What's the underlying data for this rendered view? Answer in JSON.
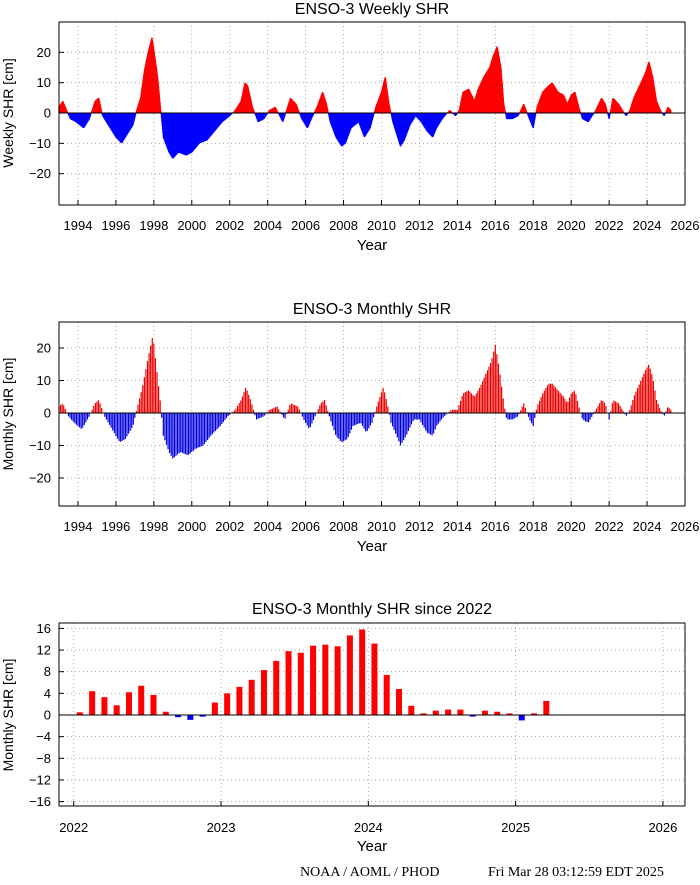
{
  "footer": {
    "source": "NOAA / AOML / PHOD",
    "timestamp": "Fri Mar 28 03:12:59 EDT 2025"
  },
  "chart_data": [
    {
      "type": "bar",
      "title": "ENSO-3 Weekly SHR",
      "xlabel": "Year",
      "ylabel": "Weekly SHR [cm]",
      "xlim": [
        1993,
        2026
      ],
      "ylim": [
        -30,
        30
      ],
      "x_ticks": [
        "1994",
        "1996",
        "1998",
        "2000",
        "2002",
        "2004",
        "2006",
        "2008",
        "2010",
        "2012",
        "2014",
        "2016",
        "2018",
        "2020",
        "2022",
        "2024",
        "2026"
      ],
      "y_ticks": [
        "−20",
        "−10",
        "0",
        "10",
        "20"
      ],
      "grid": true,
      "colors": {
        "positive": "#ff0000",
        "negative": "#0000ff"
      },
      "series_keypoints": [
        [
          1993.0,
          2
        ],
        [
          1993.2,
          4
        ],
        [
          1993.4,
          1
        ],
        [
          1993.6,
          -2
        ],
        [
          1993.9,
          -3
        ],
        [
          1994.3,
          -5
        ],
        [
          1994.6,
          -2
        ],
        [
          1994.9,
          4
        ],
        [
          1995.1,
          5
        ],
        [
          1995.3,
          -1
        ],
        [
          1995.6,
          -4
        ],
        [
          1996.0,
          -8
        ],
        [
          1996.3,
          -10
        ],
        [
          1996.6,
          -7
        ],
        [
          1996.9,
          -4
        ],
        [
          1997.1,
          1
        ],
        [
          1997.3,
          5
        ],
        [
          1997.5,
          14
        ],
        [
          1997.7,
          20
        ],
        [
          1997.9,
          25
        ],
        [
          1998.0,
          21
        ],
        [
          1998.2,
          12
        ],
        [
          1998.35,
          2
        ],
        [
          1998.5,
          -8
        ],
        [
          1998.8,
          -13
        ],
        [
          1999.0,
          -15
        ],
        [
          1999.3,
          -13
        ],
        [
          1999.7,
          -14
        ],
        [
          2000.0,
          -13
        ],
        [
          2000.4,
          -10
        ],
        [
          2000.8,
          -9
        ],
        [
          2001.2,
          -6
        ],
        [
          2001.6,
          -3
        ],
        [
          2002.0,
          -1
        ],
        [
          2002.3,
          1
        ],
        [
          2002.6,
          4
        ],
        [
          2002.8,
          10
        ],
        [
          2002.95,
          9
        ],
        [
          2003.2,
          2
        ],
        [
          2003.5,
          -3
        ],
        [
          2003.8,
          -2
        ],
        [
          2004.1,
          1
        ],
        [
          2004.4,
          2
        ],
        [
          2004.8,
          -3
        ],
        [
          2005.2,
          5
        ],
        [
          2005.5,
          3
        ],
        [
          2005.8,
          -2
        ],
        [
          2006.1,
          -5
        ],
        [
          2006.3,
          -2
        ],
        [
          2006.6,
          2
        ],
        [
          2006.9,
          7
        ],
        [
          2007.1,
          3
        ],
        [
          2007.3,
          -3
        ],
        [
          2007.6,
          -8
        ],
        [
          2007.9,
          -11
        ],
        [
          2008.1,
          -10
        ],
        [
          2008.4,
          -5
        ],
        [
          2008.8,
          -3
        ],
        [
          2009.1,
          -8
        ],
        [
          2009.4,
          -5
        ],
        [
          2009.7,
          2
        ],
        [
          2010.0,
          7
        ],
        [
          2010.2,
          12
        ],
        [
          2010.4,
          3
        ],
        [
          2010.6,
          -3
        ],
        [
          2010.8,
          -7
        ],
        [
          2011.0,
          -11
        ],
        [
          2011.2,
          -9
        ],
        [
          2011.5,
          -4
        ],
        [
          2011.8,
          -1
        ],
        [
          2012.1,
          -3
        ],
        [
          2012.4,
          -6
        ],
        [
          2012.7,
          -8
        ],
        [
          2012.9,
          -5
        ],
        [
          2013.2,
          -2
        ],
        [
          2013.6,
          1
        ],
        [
          2013.9,
          -1
        ],
        [
          2014.1,
          1
        ],
        [
          2014.3,
          7
        ],
        [
          2014.6,
          8
        ],
        [
          2014.9,
          4
        ],
        [
          2015.1,
          8
        ],
        [
          2015.4,
          12
        ],
        [
          2015.7,
          15
        ],
        [
          2015.9,
          19
        ],
        [
          2016.1,
          22
        ],
        [
          2016.3,
          15
        ],
        [
          2016.45,
          3
        ],
        [
          2016.6,
          -2
        ],
        [
          2016.9,
          -2
        ],
        [
          2017.2,
          -1
        ],
        [
          2017.5,
          3
        ],
        [
          2017.8,
          -2
        ],
        [
          2018.0,
          -5
        ],
        [
          2018.2,
          2
        ],
        [
          2018.5,
          7
        ],
        [
          2018.8,
          9
        ],
        [
          2019.0,
          10
        ],
        [
          2019.3,
          7
        ],
        [
          2019.6,
          6
        ],
        [
          2019.8,
          3
        ],
        [
          2020.0,
          6
        ],
        [
          2020.2,
          7
        ],
        [
          2020.4,
          2
        ],
        [
          2020.6,
          -2
        ],
        [
          2020.9,
          -3
        ],
        [
          2021.1,
          -1
        ],
        [
          2021.3,
          1
        ],
        [
          2021.6,
          5
        ],
        [
          2021.8,
          3
        ],
        [
          2022.0,
          -2
        ],
        [
          2022.2,
          5
        ],
        [
          2022.5,
          3
        ],
        [
          2022.7,
          1
        ],
        [
          2022.9,
          -1
        ],
        [
          2023.1,
          1
        ],
        [
          2023.3,
          5
        ],
        [
          2023.6,
          9
        ],
        [
          2023.9,
          13
        ],
        [
          2024.1,
          17
        ],
        [
          2024.3,
          12
        ],
        [
          2024.5,
          4
        ],
        [
          2024.7,
          1
        ],
        [
          2024.9,
          -1
        ],
        [
          2025.1,
          2
        ],
        [
          2025.25,
          1
        ]
      ]
    },
    {
      "type": "bar",
      "title": "ENSO-3 Monthly SHR",
      "xlabel": "Year",
      "ylabel": "Monthly SHR [cm]",
      "xlim": [
        1993,
        2026
      ],
      "ylim": [
        -30,
        28
      ],
      "x_ticks": [
        "1994",
        "1996",
        "1998",
        "2000",
        "2002",
        "2004",
        "2006",
        "2008",
        "2010",
        "2012",
        "2014",
        "2016",
        "2018",
        "2020",
        "2022",
        "2024",
        "2026"
      ],
      "y_ticks": [
        "−20",
        "−10",
        "0",
        "10",
        "20"
      ],
      "grid": true,
      "colors": {
        "positive": "#ff0000",
        "negative": "#0000ff"
      },
      "series_keypoints": [
        [
          1993.0,
          2
        ],
        [
          1993.2,
          3
        ],
        [
          1993.5,
          -1
        ],
        [
          1993.8,
          -3
        ],
        [
          1994.2,
          -5
        ],
        [
          1994.6,
          -1
        ],
        [
          1994.9,
          3
        ],
        [
          1995.1,
          4
        ],
        [
          1995.4,
          -1
        ],
        [
          1995.8,
          -5
        ],
        [
          1996.2,
          -9
        ],
        [
          1996.5,
          -8
        ],
        [
          1996.9,
          -4
        ],
        [
          1997.1,
          1
        ],
        [
          1997.4,
          8
        ],
        [
          1997.7,
          17
        ],
        [
          1997.95,
          24
        ],
        [
          1998.1,
          16
        ],
        [
          1998.35,
          3
        ],
        [
          1998.5,
          -7
        ],
        [
          1998.8,
          -12
        ],
        [
          1999.0,
          -14
        ],
        [
          1999.4,
          -12
        ],
        [
          1999.8,
          -13
        ],
        [
          2000.2,
          -11
        ],
        [
          2000.6,
          -10
        ],
        [
          2001.0,
          -7
        ],
        [
          2001.5,
          -4
        ],
        [
          2001.9,
          -1
        ],
        [
          2002.3,
          1
        ],
        [
          2002.6,
          4
        ],
        [
          2002.85,
          8
        ],
        [
          2003.1,
          4
        ],
        [
          2003.4,
          -2
        ],
        [
          2003.8,
          -1
        ],
        [
          2004.1,
          1
        ],
        [
          2004.5,
          2
        ],
        [
          2004.9,
          -2
        ],
        [
          2005.2,
          3
        ],
        [
          2005.6,
          2
        ],
        [
          2005.9,
          -2
        ],
        [
          2006.2,
          -5
        ],
        [
          2006.5,
          -1
        ],
        [
          2006.8,
          3
        ],
        [
          2007.0,
          4
        ],
        [
          2007.3,
          -2
        ],
        [
          2007.6,
          -7
        ],
        [
          2007.9,
          -9
        ],
        [
          2008.2,
          -8
        ],
        [
          2008.5,
          -4
        ],
        [
          2008.9,
          -3
        ],
        [
          2009.2,
          -6
        ],
        [
          2009.5,
          -3
        ],
        [
          2009.8,
          3
        ],
        [
          2010.1,
          8
        ],
        [
          2010.3,
          3
        ],
        [
          2010.5,
          -3
        ],
        [
          2010.8,
          -7
        ],
        [
          2011.0,
          -10
        ],
        [
          2011.3,
          -7
        ],
        [
          2011.7,
          -2
        ],
        [
          2012.0,
          -2
        ],
        [
          2012.4,
          -6
        ],
        [
          2012.7,
          -7
        ],
        [
          2012.9,
          -4
        ],
        [
          2013.3,
          -1
        ],
        [
          2013.7,
          1
        ],
        [
          2014.0,
          1
        ],
        [
          2014.3,
          6
        ],
        [
          2014.6,
          7
        ],
        [
          2014.9,
          5
        ],
        [
          2015.2,
          8
        ],
        [
          2015.5,
          12
        ],
        [
          2015.8,
          16
        ],
        [
          2016.0,
          21
        ],
        [
          2016.2,
          14
        ],
        [
          2016.45,
          3
        ],
        [
          2016.6,
          -2
        ],
        [
          2016.9,
          -2
        ],
        [
          2017.2,
          -1
        ],
        [
          2017.5,
          3
        ],
        [
          2017.8,
          -2
        ],
        [
          2018.0,
          -4
        ],
        [
          2018.2,
          2
        ],
        [
          2018.5,
          6
        ],
        [
          2018.8,
          9
        ],
        [
          2019.0,
          9
        ],
        [
          2019.3,
          7
        ],
        [
          2019.6,
          5
        ],
        [
          2019.8,
          3
        ],
        [
          2020.0,
          6
        ],
        [
          2020.2,
          7
        ],
        [
          2020.4,
          2
        ],
        [
          2020.6,
          -2
        ],
        [
          2020.9,
          -3
        ],
        [
          2021.1,
          -1
        ],
        [
          2021.3,
          1
        ],
        [
          2021.6,
          4
        ],
        [
          2021.8,
          3
        ],
        [
          2022.0,
          -2
        ],
        [
          2022.2,
          4
        ],
        [
          2022.5,
          3
        ],
        [
          2022.7,
          1
        ],
        [
          2022.9,
          -1
        ],
        [
          2023.1,
          1
        ],
        [
          2023.3,
          5
        ],
        [
          2023.6,
          9
        ],
        [
          2023.9,
          13
        ],
        [
          2024.1,
          15
        ],
        [
          2024.3,
          11
        ],
        [
          2024.5,
          4
        ],
        [
          2024.7,
          1
        ],
        [
          2024.9,
          -1
        ],
        [
          2025.1,
          2
        ],
        [
          2025.25,
          1
        ]
      ]
    },
    {
      "type": "bar",
      "title": "ENSO-3 Monthly SHR since 2022",
      "xlabel": "Year",
      "ylabel": "Monthly SHR [cm]",
      "xlim": [
        2021.9,
        2026.15
      ],
      "ylim": [
        -17,
        17
      ],
      "x_ticks": [
        "2022",
        "2023",
        "2024",
        "2025",
        "2026"
      ],
      "y_ticks": [
        "16",
        "12",
        "8",
        "4",
        "0",
        "−4",
        "−8",
        "−12",
        "−16"
      ],
      "grid": true,
      "colors": {
        "positive": "#ff0000",
        "negative": "#0000ff"
      },
      "months": [
        "2022-01",
        "2022-02",
        "2022-03",
        "2022-04",
        "2022-05",
        "2022-06",
        "2022-07",
        "2022-08",
        "2022-09",
        "2022-10",
        "2022-11",
        "2022-12",
        "2023-01",
        "2023-02",
        "2023-03",
        "2023-04",
        "2023-05",
        "2023-06",
        "2023-07",
        "2023-08",
        "2023-09",
        "2023-10",
        "2023-11",
        "2023-12",
        "2024-01",
        "2024-02",
        "2024-03",
        "2024-04",
        "2024-05",
        "2024-06",
        "2024-07",
        "2024-08",
        "2024-09",
        "2024-10",
        "2024-11",
        "2024-12",
        "2025-01",
        "2025-02",
        "2025-03"
      ],
      "values": [
        0.5,
        4.4,
        3.3,
        1.8,
        4.2,
        5.4,
        3.7,
        0.6,
        -0.4,
        -0.9,
        -0.3,
        2.3,
        4.0,
        5.2,
        6.5,
        8.3,
        10.0,
        11.8,
        11.5,
        12.8,
        13.0,
        12.7,
        14.7,
        15.8,
        13.2,
        7.4,
        4.8,
        1.7,
        0.3,
        0.8,
        1.0,
        1.0,
        -0.3,
        0.8,
        0.6,
        0.3,
        -1.0,
        0.3,
        2.6
      ]
    }
  ]
}
